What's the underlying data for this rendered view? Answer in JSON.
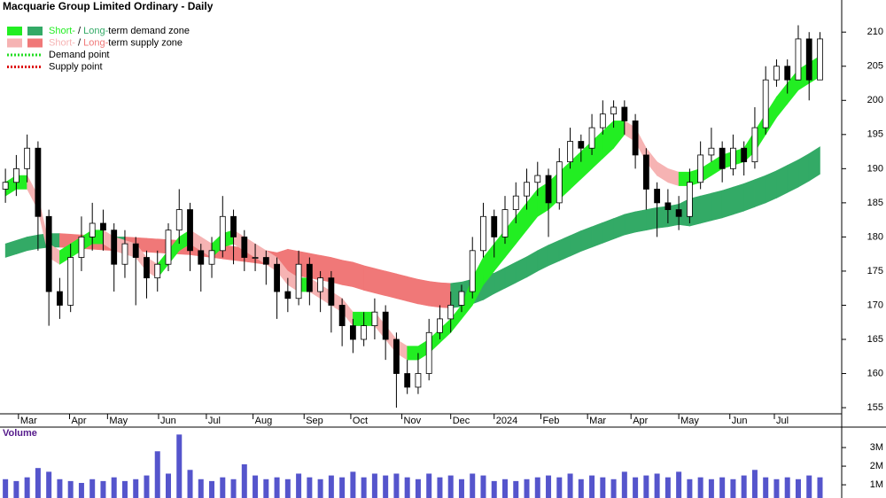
{
  "chart_data": {
    "type": "candlestick",
    "title": "Macquarie Group Limited Ordinary - Daily",
    "legend": [
      {
        "swatches": [
          "#22ee22",
          "#33aa66"
        ],
        "parts": [
          "Short-",
          " / ",
          "Long-",
          "term demand zone"
        ]
      },
      {
        "swatches": [
          "#f6b3b3",
          "#f07878"
        ],
        "parts": [
          "Short-",
          " / ",
          "Long-",
          "term supply zone"
        ]
      },
      {
        "line": "#22dd22",
        "text": "Demand point"
      },
      {
        "line": "#dd0000",
        "text": "Supply point"
      }
    ],
    "xlim": [
      -0.5,
      77
    ],
    "xticks": [
      {
        "value": 1.2,
        "label": "Mar"
      },
      {
        "value": 5.9,
        "label": "Apr"
      },
      {
        "value": 9.4,
        "label": "May"
      },
      {
        "value": 14.1,
        "label": "Jun"
      },
      {
        "value": 18.5,
        "label": "Jul"
      },
      {
        "value": 22.8,
        "label": "Aug"
      },
      {
        "value": 27.5,
        "label": "Sep"
      },
      {
        "value": 31.8,
        "label": "Oct"
      },
      {
        "value": 36.5,
        "label": "Nov"
      },
      {
        "value": 41.0,
        "label": "Dec"
      },
      {
        "value": 45.0,
        "label": "2024"
      },
      {
        "value": 49.3,
        "label": "Feb"
      },
      {
        "value": 53.6,
        "label": "Mar"
      },
      {
        "value": 57.6,
        "label": "Apr"
      },
      {
        "value": 62.0,
        "label": "May"
      },
      {
        "value": 66.7,
        "label": "Jun"
      },
      {
        "value": 70.8,
        "label": "Jul"
      }
    ],
    "ylim": [
      154.1,
      214.7
    ],
    "yticks": [
      155,
      160,
      165,
      170,
      175,
      180,
      185,
      190,
      195,
      200,
      205,
      210
    ],
    "up_color": "#ffffff",
    "down_color": "#000000",
    "ohlc": [
      [
        187,
        190,
        185,
        188
      ],
      [
        188,
        192,
        186,
        190
      ],
      [
        190,
        195,
        188,
        193
      ],
      [
        193,
        194,
        178,
        183
      ],
      [
        183,
        184,
        167,
        172
      ],
      [
        172,
        174,
        168,
        170
      ],
      [
        170,
        179,
        169,
        177
      ],
      [
        177,
        183,
        175,
        180
      ],
      [
        180,
        185,
        178,
        182
      ],
      [
        182,
        184,
        178,
        181
      ],
      [
        181,
        182,
        172,
        176
      ],
      [
        176,
        181,
        174,
        179
      ],
      [
        179,
        180,
        170,
        177
      ],
      [
        177,
        178,
        171,
        174
      ],
      [
        174,
        178,
        172,
        176
      ],
      [
        176,
        182,
        175,
        181
      ],
      [
        181,
        187,
        179,
        184
      ],
      [
        184,
        185,
        175,
        178
      ],
      [
        178,
        179,
        172,
        176
      ],
      [
        176,
        180,
        174,
        178
      ],
      [
        178,
        186,
        177,
        183
      ],
      [
        183,
        184,
        176,
        180
      ],
      [
        180,
        181,
        175,
        177
      ],
      [
        177,
        179,
        175,
        177
      ],
      [
        177,
        178,
        173,
        176
      ],
      [
        176,
        177,
        168,
        172
      ],
      [
        172,
        174,
        169,
        171
      ],
      [
        171,
        178,
        170,
        176
      ],
      [
        176,
        177,
        170,
        172
      ],
      [
        172,
        175,
        169,
        174
      ],
      [
        174,
        175,
        166,
        170
      ],
      [
        170,
        171,
        164,
        167
      ],
      [
        167,
        168,
        163,
        165
      ],
      [
        165,
        169,
        164,
        167
      ],
      [
        167,
        171,
        165,
        169
      ],
      [
        169,
        170,
        162,
        165
      ],
      [
        165,
        166,
        155,
        160
      ],
      [
        160,
        162,
        157,
        158
      ],
      [
        158,
        163,
        157,
        160
      ],
      [
        160,
        168,
        159,
        166
      ],
      [
        166,
        170,
        165,
        168
      ],
      [
        168,
        172,
        166,
        170
      ],
      [
        170,
        173,
        169,
        172
      ],
      [
        172,
        180,
        171,
        178
      ],
      [
        178,
        185,
        177,
        183
      ],
      [
        183,
        184,
        177,
        180
      ],
      [
        180,
        186,
        179,
        184
      ],
      [
        184,
        188,
        182,
        186
      ],
      [
        186,
        190,
        184,
        188
      ],
      [
        188,
        191,
        186,
        189
      ],
      [
        189,
        190,
        180,
        185
      ],
      [
        185,
        193,
        184,
        191
      ],
      [
        191,
        196,
        190,
        194
      ],
      [
        194,
        195,
        191,
        193
      ],
      [
        193,
        198,
        192,
        196
      ],
      [
        196,
        200,
        195,
        198
      ],
      [
        198,
        200,
        196,
        199
      ],
      [
        199,
        200,
        195,
        197
      ],
      [
        197,
        198,
        190,
        192
      ],
      [
        192,
        193,
        184,
        187
      ],
      [
        187,
        188,
        180,
        185
      ],
      [
        185,
        187,
        182,
        184
      ],
      [
        184,
        186,
        181,
        183
      ],
      [
        183,
        190,
        182,
        188
      ],
      [
        188,
        194,
        187,
        192
      ],
      [
        192,
        196,
        191,
        193
      ],
      [
        193,
        194,
        188,
        190
      ],
      [
        190,
        195,
        189,
        193
      ],
      [
        193,
        194,
        189,
        191
      ],
      [
        191,
        199,
        190,
        196
      ],
      [
        196,
        205,
        195,
        203
      ],
      [
        203,
        206,
        202,
        205
      ],
      [
        205,
        206,
        201,
        203
      ],
      [
        203,
        211,
        203,
        209
      ],
      [
        209,
        210,
        200,
        203
      ],
      [
        203,
        210,
        203,
        209
      ]
    ],
    "zones": [
      {
        "demand_color": "#33aa66",
        "supply_color": "#f07878",
        "upper": [
          179,
          179.5,
          180,
          180.3,
          180.5,
          180.5,
          180.4,
          180.3,
          180.2,
          180.1,
          180,
          180,
          179.9,
          179.8,
          179.7,
          179.6,
          179.5,
          179.4,
          179.2,
          179,
          178.8,
          178.6,
          178.4,
          178.2,
          178,
          177.7,
          178.2,
          177.9,
          177.6,
          177.3,
          177,
          176.6,
          176.3,
          175.8,
          175.4,
          175,
          174.6,
          174.2,
          173.8,
          173.5,
          173.3,
          173.2,
          173.4,
          173.8,
          174.4,
          174.7,
          175.5,
          176.3,
          177.1,
          178,
          178.8,
          179.5,
          180.2,
          180.9,
          181.5,
          182.1,
          182.7,
          183.3,
          183.7,
          184,
          184.3,
          184.5,
          184.8,
          185.6,
          186,
          186.4,
          186.8,
          187.3,
          187.8,
          188.4,
          189,
          189.7,
          190.5,
          191.3,
          192.2,
          193.2
        ],
        "lower": [
          177,
          177.5,
          178,
          178.3,
          178.5,
          178.5,
          178.4,
          178.3,
          178.2,
          178.1,
          178,
          178,
          177.9,
          177.8,
          177.7,
          177.6,
          177.5,
          177.4,
          177.2,
          177,
          176.8,
          176.6,
          176.4,
          176.2,
          176,
          175.7,
          174.6,
          174.3,
          174,
          173.7,
          173.4,
          173,
          172.7,
          172.2,
          171.8,
          171.4,
          171,
          170.6,
          170.2,
          169.9,
          169.7,
          169.6,
          169.8,
          170.2,
          170.8,
          171.7,
          172.5,
          173.3,
          174.1,
          175,
          175.8,
          176.5,
          177.2,
          177.9,
          178.5,
          179.1,
          179.7,
          180.3,
          180.7,
          181,
          181.3,
          181.5,
          181.8,
          181.6,
          182,
          182.4,
          182.8,
          183.3,
          183.8,
          184.4,
          185,
          185.7,
          186.5,
          187.3,
          188.2,
          189.2
        ]
      },
      {
        "demand_color": "#22ee22",
        "supply_color": "#f6b3b3",
        "upper": [
          188,
          189,
          189,
          186,
          179,
          178,
          179,
          180,
          181,
          181,
          180,
          179.5,
          179,
          177,
          176,
          178,
          180,
          181,
          180,
          179,
          180.5,
          181,
          180,
          179,
          178,
          177,
          175,
          174,
          174,
          173,
          172,
          171,
          169,
          169,
          169,
          167,
          165,
          164,
          164,
          165,
          166.5,
          168,
          170,
          174,
          177,
          179,
          181,
          183,
          185,
          187,
          188,
          189.5,
          191,
          192.5,
          194,
          195.5,
          197,
          197,
          196,
          193,
          191,
          190,
          189.5,
          189.5,
          190,
          191,
          192,
          192.5,
          193,
          195.5,
          198,
          200.5,
          202.5,
          204.5,
          205.5,
          206.5
        ],
        "lower": [
          186,
          187,
          187,
          184,
          177,
          176,
          177,
          178,
          179,
          179,
          178,
          177.5,
          177,
          175,
          174,
          176,
          178,
          179,
          178,
          177,
          178.5,
          179,
          178,
          177,
          176,
          175,
          173,
          172,
          172,
          171,
          170,
          169,
          167,
          167,
          167,
          165,
          163,
          162,
          162,
          163,
          164.5,
          166,
          168,
          170,
          173,
          175,
          177,
          179,
          181,
          183,
          184,
          185.5,
          187,
          188.5,
          190,
          191.5,
          193,
          195,
          194,
          191,
          189,
          188,
          187.5,
          187.5,
          188,
          189,
          190,
          190.5,
          191,
          192.5,
          195,
          197.5,
          199.5,
          201.5,
          202.5,
          203.5
        ]
      }
    ],
    "volume_label": "Volume",
    "volume_color": "#5555cc",
    "volume_ylim": [
      290000,
      4050000
    ],
    "volume_ticks": [
      {
        "value": 1000000,
        "label": "1M"
      },
      {
        "value": 2000000,
        "label": "2M"
      },
      {
        "value": 3000000,
        "label": "3M"
      }
    ],
    "volume": [
      1300000,
      1200000,
      1400000,
      1900000,
      1700000,
      1300000,
      1200000,
      1100000,
      1300000,
      1200000,
      1400000,
      1200000,
      1300000,
      1500000,
      2800000,
      1600000,
      3700000,
      1800000,
      1300000,
      1200000,
      1400000,
      1300000,
      2100000,
      1500000,
      1300000,
      1400000,
      1300000,
      1600000,
      1400000,
      1300000,
      1500000,
      1400000,
      1700000,
      1400000,
      1600000,
      1500000,
      1600000,
      1400000,
      1300000,
      1600000,
      1400000,
      1500000,
      1300000,
      1600000,
      1500000,
      1200000,
      1300000,
      1200000,
      1300000,
      1400000,
      1500000,
      1400000,
      1600000,
      1300000,
      1500000,
      1400000,
      1300000,
      1700000,
      1400000,
      1500000,
      1600000,
      1400000,
      1700000,
      1300000,
      1400000,
      1300000,
      1400000,
      1300000,
      1500000,
      1800000,
      1400000,
      1300000,
      1400000,
      1300000,
      1500000,
      1400000
    ]
  }
}
